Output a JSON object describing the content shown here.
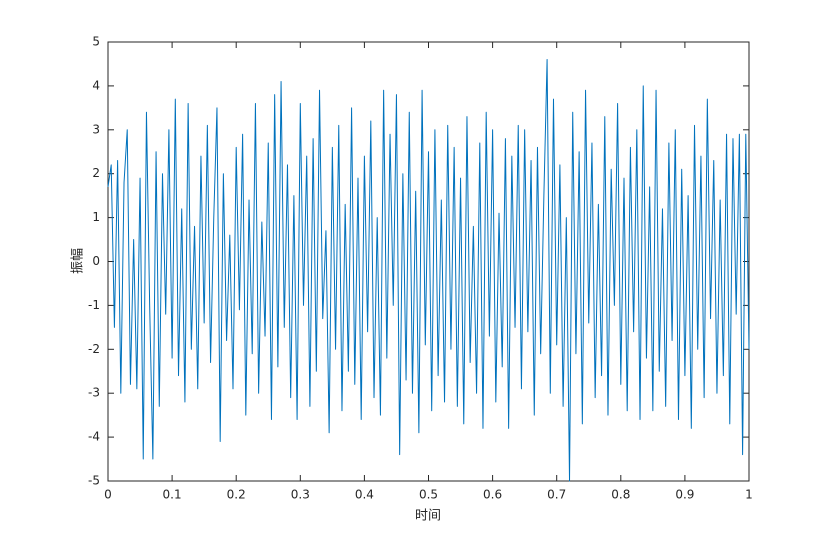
{
  "chart_data": {
    "type": "line",
    "xlabel": "时间",
    "ylabel": "振幅",
    "color": "#0072bd",
    "xlim": [
      0,
      1
    ],
    "ylim": [
      -5,
      5
    ],
    "xticks": [
      0,
      0.1,
      0.2,
      0.3,
      0.4,
      0.5,
      0.6,
      0.7,
      0.8,
      0.9,
      1
    ],
    "yticks": [
      -5,
      -4,
      -3,
      -2,
      -1,
      0,
      1,
      2,
      3,
      4,
      5
    ],
    "x": [
      0,
      0.005,
      0.01,
      0.015,
      0.02,
      0.025,
      0.03,
      0.035,
      0.04,
      0.045,
      0.05,
      0.055,
      0.06,
      0.065,
      0.07,
      0.075,
      0.08,
      0.085,
      0.09,
      0.095,
      0.1,
      0.105,
      0.11,
      0.115,
      0.12,
      0.125,
      0.13,
      0.135,
      0.14,
      0.145,
      0.15,
      0.155,
      0.16,
      0.165,
      0.17,
      0.175,
      0.18,
      0.185,
      0.19,
      0.195,
      0.2,
      0.205,
      0.21,
      0.215,
      0.22,
      0.225,
      0.23,
      0.235,
      0.24,
      0.245,
      0.25,
      0.255,
      0.26,
      0.265,
      0.27,
      0.275,
      0.28,
      0.285,
      0.29,
      0.295,
      0.3,
      0.305,
      0.31,
      0.315,
      0.32,
      0.325,
      0.33,
      0.335,
      0.34,
      0.345,
      0.35,
      0.355,
      0.36,
      0.365,
      0.37,
      0.375,
      0.38,
      0.385,
      0.39,
      0.395,
      0.4,
      0.405,
      0.41,
      0.415,
      0.42,
      0.425,
      0.43,
      0.435,
      0.44,
      0.445,
      0.45,
      0.455,
      0.46,
      0.465,
      0.47,
      0.475,
      0.48,
      0.485,
      0.49,
      0.495,
      0.5,
      0.505,
      0.51,
      0.515,
      0.52,
      0.525,
      0.53,
      0.535,
      0.54,
      0.545,
      0.55,
      0.555,
      0.56,
      0.565,
      0.57,
      0.575,
      0.58,
      0.585,
      0.59,
      0.595,
      0.6,
      0.605,
      0.61,
      0.615,
      0.62,
      0.625,
      0.63,
      0.635,
      0.64,
      0.645,
      0.65,
      0.655,
      0.66,
      0.665,
      0.67,
      0.675,
      0.68,
      0.685,
      0.69,
      0.695,
      0.7,
      0.705,
      0.71,
      0.715,
      0.72,
      0.725,
      0.73,
      0.735,
      0.74,
      0.745,
      0.75,
      0.755,
      0.76,
      0.765,
      0.77,
      0.775,
      0.78,
      0.785,
      0.79,
      0.795,
      0.8,
      0.805,
      0.81,
      0.815,
      0.82,
      0.825,
      0.83,
      0.835,
      0.84,
      0.845,
      0.85,
      0.855,
      0.86,
      0.865,
      0.87,
      0.875,
      0.88,
      0.885,
      0.89,
      0.895,
      0.9,
      0.905,
      0.91,
      0.915,
      0.92,
      0.925,
      0.93,
      0.935,
      0.94,
      0.945,
      0.95,
      0.955,
      0.96,
      0.965,
      0.97,
      0.975,
      0.98,
      0.985,
      0.99,
      0.995,
      1
    ],
    "values": [
      1.7,
      2.2,
      -1.5,
      2.3,
      -3.0,
      1.8,
      3.0,
      -2.8,
      0.5,
      -2.9,
      1.9,
      -4.5,
      3.4,
      -1.0,
      -4.5,
      2.5,
      -3.3,
      2.0,
      -1.2,
      3.0,
      -2.2,
      3.7,
      -2.6,
      1.2,
      -3.2,
      3.6,
      -2.0,
      0.8,
      -2.9,
      2.4,
      -1.4,
      3.1,
      -2.3,
      1.0,
      3.5,
      -4.1,
      2.0,
      -1.8,
      0.6,
      -2.9,
      2.6,
      -1.1,
      2.9,
      -3.5,
      1.4,
      -2.1,
      3.6,
      -3.0,
      0.9,
      -1.7,
      2.7,
      -3.6,
      3.8,
      -2.4,
      4.1,
      -1.5,
      2.2,
      -3.1,
      1.5,
      -3.6,
      3.6,
      -1.0,
      2.4,
      -3.3,
      2.8,
      -2.5,
      3.9,
      -1.3,
      0.7,
      -3.9,
      2.6,
      -2.0,
      3.1,
      -3.4,
      1.3,
      -2.5,
      3.5,
      -2.8,
      1.9,
      -3.6,
      2.4,
      -1.6,
      3.2,
      -3.1,
      1.0,
      -3.5,
      3.9,
      -2.2,
      2.9,
      -1.0,
      3.8,
      -4.4,
      2.0,
      -2.7,
      3.4,
      -3.0,
      1.6,
      -3.9,
      3.9,
      -1.9,
      2.5,
      -3.4,
      3.0,
      -2.6,
      1.4,
      -3.2,
      3.1,
      -2.0,
      2.6,
      -3.3,
      1.9,
      -3.7,
      3.3,
      -2.3,
      0.8,
      -3.0,
      2.7,
      -3.8,
      3.4,
      -1.7,
      3.0,
      -3.2,
      1.1,
      -2.4,
      2.8,
      -3.8,
      2.4,
      -1.5,
      3.1,
      -2.9,
      3.0,
      -1.6,
      2.3,
      -3.5,
      2.6,
      -2.1,
      1.5,
      4.6,
      -3.0,
      3.7,
      -1.9,
      2.2,
      -3.3,
      1.0,
      -5,
      3.4,
      -2.1,
      2.5,
      -3.7,
      3.9,
      -1.4,
      2.7,
      -3.1,
      1.3,
      -2.6,
      3.3,
      -3.5,
      2.1,
      -1.0,
      3.6,
      -2.8,
      1.9,
      -3.4,
      2.6,
      -1.6,
      3.0,
      -3.6,
      4.0,
      -2.2,
      1.7,
      -3.4,
      3.9,
      -2.5,
      1.2,
      -3.3,
      2.7,
      -1.8,
      3.0,
      -3.6,
      2.1,
      -2.6,
      1.5,
      -3.8,
      3.1,
      -2.0,
      2.4,
      -3.1,
      3.7,
      -1.3,
      2.3,
      -3.0,
      1.4,
      -2.6,
      2.9,
      -3.7,
      2.8,
      -1.2,
      2.9,
      -4.4,
      2.9,
      -2.0
    ]
  }
}
